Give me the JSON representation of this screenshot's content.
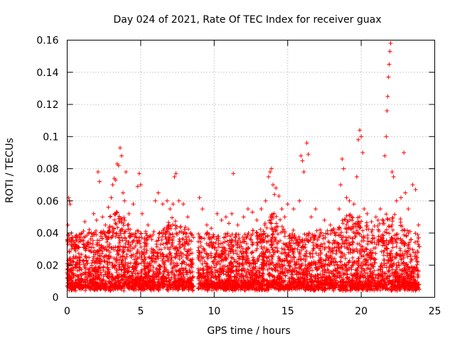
{
  "chart_data": {
    "type": "scatter",
    "title": "Day 024 of 2021, Rate Of TEC Index for receiver guax",
    "xlabel": "GPS time / hours",
    "ylabel": "ROTI / TECUs",
    "xlim": [
      0,
      25
    ],
    "ylim": [
      0,
      0.16
    ],
    "x_ticks": [
      0,
      5,
      10,
      15,
      20,
      25
    ],
    "y_ticks": [
      0,
      0.02,
      0.04,
      0.06,
      0.08,
      0.1,
      0.12,
      0.14,
      0.16
    ],
    "x_tick_labels": [
      "0",
      "5",
      "10",
      "15",
      "20",
      "25"
    ],
    "y_tick_labels": [
      "0",
      "0.02",
      "0.04",
      "0.06",
      "0.08",
      "0.1",
      "0.12",
      "0.14",
      "0.16"
    ],
    "grid": true,
    "marker": "plus",
    "marker_color": "#ff0000",
    "data_gap_hours": [
      8.6,
      8.9
    ],
    "series": [
      {
        "points": [
          [
            0.05,
            0.045
          ],
          [
            0.1,
            0.062
          ],
          [
            0.15,
            0.06
          ],
          [
            0.2,
            0.058
          ],
          [
            0.3,
            0.035
          ],
          [
            0.5,
            0.03
          ],
          [
            0.8,
            0.025
          ],
          [
            1.0,
            0.04
          ],
          [
            1.2,
            0.047
          ],
          [
            1.5,
            0.042
          ],
          [
            1.7,
            0.038
          ],
          [
            1.8,
            0.052
          ],
          [
            2.0,
            0.048
          ],
          [
            2.1,
            0.078
          ],
          [
            2.2,
            0.072
          ],
          [
            2.4,
            0.05
          ],
          [
            2.6,
            0.045
          ],
          [
            2.8,
            0.056
          ],
          [
            3.0,
            0.062
          ],
          [
            3.1,
            0.07
          ],
          [
            3.2,
            0.074
          ],
          [
            3.3,
            0.073
          ],
          [
            3.4,
            0.083
          ],
          [
            3.5,
            0.082
          ],
          [
            3.6,
            0.093
          ],
          [
            3.7,
            0.088
          ],
          [
            3.8,
            0.065
          ],
          [
            3.9,
            0.06
          ],
          [
            4.0,
            0.078
          ],
          [
            4.2,
            0.052
          ],
          [
            4.5,
            0.058
          ],
          [
            4.8,
            0.069
          ],
          [
            4.9,
            0.077
          ],
          [
            5.0,
            0.07
          ],
          [
            5.1,
            0.052
          ],
          [
            5.5,
            0.045
          ],
          [
            6.0,
            0.06
          ],
          [
            6.2,
            0.065
          ],
          [
            6.5,
            0.058
          ],
          [
            6.8,
            0.06
          ],
          [
            7.0,
            0.055
          ],
          [
            7.2,
            0.058
          ],
          [
            7.3,
            0.075
          ],
          [
            7.4,
            0.077
          ],
          [
            7.6,
            0.06
          ],
          [
            7.9,
            0.058
          ],
          [
            8.2,
            0.05
          ],
          [
            8.4,
            0.04
          ],
          [
            9.0,
            0.062
          ],
          [
            9.2,
            0.055
          ],
          [
            9.5,
            0.045
          ],
          [
            9.8,
            0.043
          ],
          [
            10.2,
            0.052
          ],
          [
            10.5,
            0.048
          ],
          [
            10.8,
            0.05
          ],
          [
            11.0,
            0.046
          ],
          [
            11.2,
            0.052
          ],
          [
            11.3,
            0.077
          ],
          [
            11.6,
            0.045
          ],
          [
            12.0,
            0.05
          ],
          [
            12.3,
            0.055
          ],
          [
            12.6,
            0.053
          ],
          [
            12.9,
            0.048
          ],
          [
            13.2,
            0.055
          ],
          [
            13.5,
            0.06
          ],
          [
            13.7,
            0.075
          ],
          [
            13.8,
            0.078
          ],
          [
            13.9,
            0.08
          ],
          [
            14.0,
            0.07
          ],
          [
            14.1,
            0.064
          ],
          [
            14.2,
            0.068
          ],
          [
            14.4,
            0.063
          ],
          [
            14.6,
            0.055
          ],
          [
            14.8,
            0.05
          ],
          [
            15.0,
            0.058
          ],
          [
            15.4,
            0.055
          ],
          [
            15.8,
            0.06
          ],
          [
            15.9,
            0.088
          ],
          [
            16.0,
            0.085
          ],
          [
            16.1,
            0.078
          ],
          [
            16.3,
            0.096
          ],
          [
            16.4,
            0.089
          ],
          [
            16.6,
            0.05
          ],
          [
            16.9,
            0.055
          ],
          [
            17.2,
            0.042
          ],
          [
            17.5,
            0.048
          ],
          [
            17.9,
            0.045
          ],
          [
            18.2,
            0.04
          ],
          [
            18.5,
            0.055
          ],
          [
            18.6,
            0.07
          ],
          [
            18.7,
            0.086
          ],
          [
            18.8,
            0.08
          ],
          [
            19.0,
            0.062
          ],
          [
            19.2,
            0.06
          ],
          [
            19.5,
            0.058
          ],
          [
            19.7,
            0.075
          ],
          [
            19.8,
            0.098
          ],
          [
            19.9,
            0.104
          ],
          [
            20.0,
            0.1
          ],
          [
            20.1,
            0.09
          ],
          [
            20.2,
            0.055
          ],
          [
            20.4,
            0.052
          ],
          [
            20.7,
            0.047
          ],
          [
            21.0,
            0.05
          ],
          [
            21.3,
            0.055
          ],
          [
            21.6,
            0.088
          ],
          [
            21.7,
            0.1
          ],
          [
            21.75,
            0.116
          ],
          [
            21.8,
            0.125
          ],
          [
            21.85,
            0.137
          ],
          [
            21.9,
            0.145
          ],
          [
            21.95,
            0.153
          ],
          [
            22.0,
            0.158
          ],
          [
            22.1,
            0.078
          ],
          [
            22.2,
            0.075
          ],
          [
            22.4,
            0.06
          ],
          [
            22.7,
            0.062
          ],
          [
            22.9,
            0.09
          ],
          [
            23.0,
            0.065
          ],
          [
            23.2,
            0.055
          ],
          [
            23.5,
            0.07
          ],
          [
            23.7,
            0.067
          ],
          [
            23.9,
            0.045
          ]
        ]
      }
    ]
  }
}
